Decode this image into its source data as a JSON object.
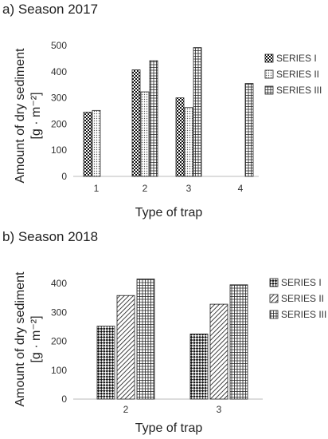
{
  "chart_data": [
    {
      "type": "bar",
      "panel_title": "a) Season 2017",
      "categories": [
        "1",
        "2",
        "3",
        "4"
      ],
      "series": [
        {
          "name": "SERIES I",
          "values": [
            245,
            407,
            300,
            null
          ],
          "pattern": "dense-check"
        },
        {
          "name": "SERIES II",
          "values": [
            252,
            323,
            263,
            null
          ],
          "pattern": "dots"
        },
        {
          "name": "SERIES III",
          "values": [
            null,
            442,
            492,
            355
          ],
          "pattern": "grid"
        }
      ],
      "xlabel": "Type of trap",
      "ylabel_line1": "Amount of dry sediment",
      "ylabel_unit": "[g · m⁻²]",
      "ylim": [
        0,
        500
      ],
      "yticks": [
        "0",
        "100",
        "200",
        "300",
        "400",
        "500"
      ],
      "grid": false,
      "legend_position": "right"
    },
    {
      "type": "bar",
      "panel_title": "b) Season 2018",
      "categories": [
        "2",
        "3"
      ],
      "series": [
        {
          "name": "SERIES I",
          "values": [
            252,
            225
          ],
          "pattern": "check"
        },
        {
          "name": "SERIES II",
          "values": [
            358,
            328
          ],
          "pattern": "diagonal"
        },
        {
          "name": "SERIES III",
          "values": [
            415,
            395
          ],
          "pattern": "grid"
        }
      ],
      "xlabel": "Type of trap",
      "ylabel_line1": "Amount of dry sediment",
      "ylabel_unit": "[g · m⁻²]",
      "ylim": [
        0,
        400
      ],
      "yticks": [
        "0",
        "100",
        "200",
        "300",
        "400"
      ],
      "grid": false,
      "legend_position": "right"
    }
  ]
}
